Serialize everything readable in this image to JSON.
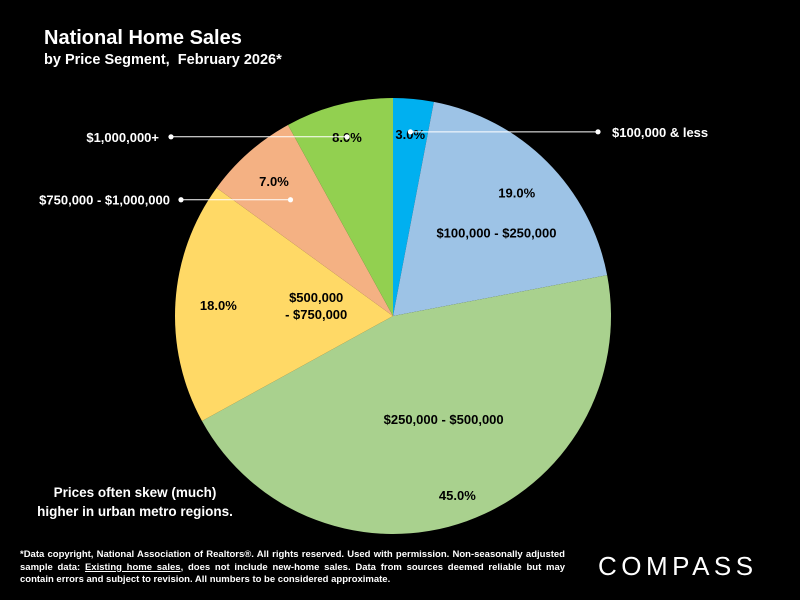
{
  "title": "National Home Sales",
  "subtitle": "by Price Segment,  February 2026*",
  "note_lines": [
    "Prices often skew (much)",
    "higher in urban metro regions."
  ],
  "footnote": {
    "part1": "*Data copyright, National Association of Realtors®. All rights reserved. Used with permission. Non-seasonally adjusted sample data: ",
    "underlined": "Existing home sales",
    "part2": ", does not include new-home sales. Data from sources deemed reliable but may contain errors and subject to revision. All numbers to be considered approximate."
  },
  "logo": "COMPASS",
  "chart_data": {
    "type": "pie",
    "title": "National Home Sales",
    "subtitle": "by Price Segment,  February 2026*",
    "slices": [
      {
        "label": "$100,000 & less",
        "value": 3.0,
        "value_label": "3.0%",
        "color": "#00b0f0"
      },
      {
        "label": "$100,000 - $250,000",
        "value": 19.0,
        "value_label": "19.0%",
        "color": "#9dc3e6"
      },
      {
        "label": "$250,000 - $500,000",
        "value": 45.0,
        "value_label": "45.0%",
        "color": "#a9d18e"
      },
      {
        "label": "$500,000 - $750,000",
        "value": 18.0,
        "value_label": "18.0%",
        "color": "#ffd966"
      },
      {
        "label": "$750,000 - $1,000,000",
        "value": 7.0,
        "value_label": "7.0%",
        "color": "#f4b183"
      },
      {
        "label": "$1,000,000+",
        "value": 8.0,
        "value_label": "8.0%",
        "color": "#92d050"
      }
    ],
    "legend": "none"
  }
}
